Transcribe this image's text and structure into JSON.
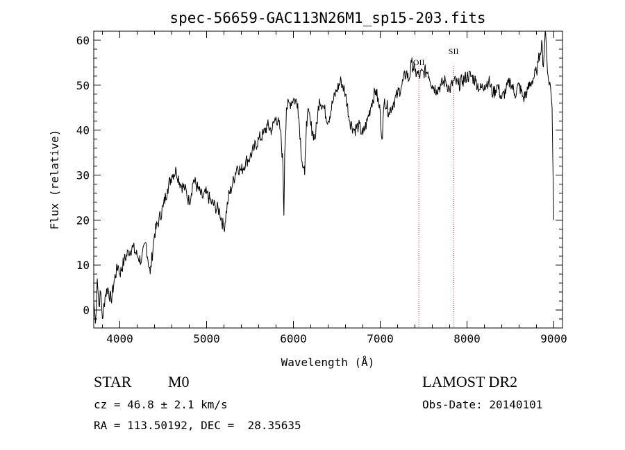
{
  "chart_data": {
    "type": "line",
    "title": "spec-56659-GAC113N26M1_sp15-203.fits",
    "xlabel": "Wavelength (Å)",
    "ylabel": "Flux (relative)",
    "xlim": [
      3700,
      9100
    ],
    "ylim": [
      -4,
      62
    ],
    "x_ticks": [
      "4000",
      "5000",
      "6000",
      "7000",
      "8000",
      "9000"
    ],
    "y_ticks": [
      "0",
      "10",
      "20",
      "30",
      "40",
      "50",
      "60"
    ],
    "grid": false,
    "line_color": "#000000",
    "series": [
      {
        "x": [
          3700,
          3720,
          3740,
          3760,
          3780,
          3800,
          3830,
          3860,
          3900,
          3940,
          3980,
          4000,
          4050,
          4100,
          4150,
          4200,
          4250,
          4300,
          4350,
          4400,
          4450,
          4500,
          4550,
          4600,
          4650,
          4700,
          4750,
          4800,
          4850,
          4900,
          4950,
          5000,
          5050,
          5100,
          5150,
          5200,
          5250,
          5300,
          5350,
          5400,
          5450,
          5500,
          5550,
          5600,
          5650,
          5700,
          5750,
          5800,
          5850,
          5880,
          5890,
          5900,
          5920,
          5960,
          6000,
          6050,
          6100,
          6130,
          6150,
          6180,
          6200,
          6250,
          6300,
          6350,
          6400,
          6450,
          6500,
          6550,
          6600,
          6650,
          6700,
          6750,
          6800,
          6850,
          6900,
          6950,
          7000,
          7020,
          7050,
          7100,
          7150,
          7200,
          7250,
          7300,
          7330,
          7360,
          7400,
          7450,
          7500,
          7550,
          7600,
          7650,
          7700,
          7750,
          7800,
          7850,
          7900,
          7950,
          8000,
          8050,
          8100,
          8150,
          8200,
          8250,
          8300,
          8350,
          8400,
          8450,
          8500,
          8550,
          8600,
          8650,
          8700,
          8750,
          8800,
          8820,
          8840,
          8860,
          8880,
          8900,
          8920,
          8940,
          8960,
          8980,
          9000
        ],
        "y": [
          2,
          -3,
          7,
          1,
          4,
          -2,
          3,
          5,
          2,
          7,
          10,
          8,
          11,
          13,
          14,
          12,
          11,
          15,
          8,
          17,
          20,
          23,
          27,
          30,
          31,
          28,
          27,
          24,
          29,
          27,
          25,
          26,
          24,
          23,
          22,
          18,
          25,
          28,
          32,
          31,
          33,
          34,
          36,
          38,
          39,
          41,
          40,
          43,
          40,
          32,
          21,
          35,
          45,
          46,
          47,
          46,
          33,
          30,
          42,
          44,
          41,
          38,
          47,
          45,
          42,
          46,
          49,
          51,
          48,
          42,
          40,
          41,
          39,
          42,
          46,
          49,
          44,
          38,
          47,
          44,
          46,
          48,
          50,
          53,
          51,
          55,
          53,
          52,
          53,
          53,
          50,
          49,
          50,
          51,
          49,
          51,
          50,
          51,
          52,
          52,
          51,
          49,
          50,
          51,
          48,
          50,
          47,
          49,
          51,
          48,
          50,
          47,
          49,
          51,
          53,
          55,
          57,
          60,
          54,
          62,
          56,
          51,
          50,
          45,
          20
        ]
      }
    ],
    "line_markers": [
      {
        "label": "OII",
        "x": 7445,
        "color": "#b22222"
      },
      {
        "label": "SII",
        "x": 7845,
        "color": "#b22222"
      }
    ]
  },
  "info": {
    "object_class": "STAR",
    "subclass": "M0",
    "survey": "LAMOST DR2",
    "redshift": "cz = 46.8 ± 2.1 km/s",
    "obs_date": "Obs-Date: 20140101",
    "coords": "RA = 113.50192, DEC =  28.35635"
  }
}
